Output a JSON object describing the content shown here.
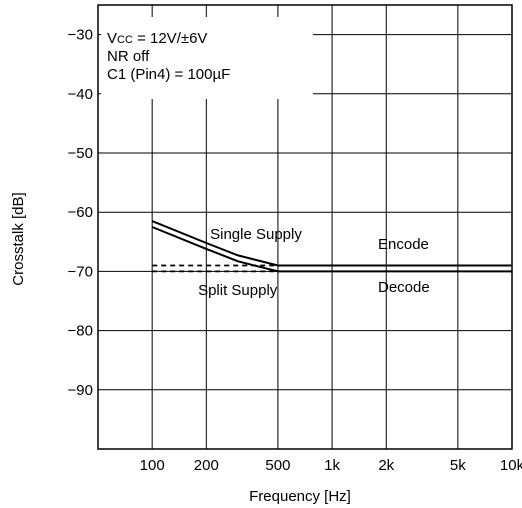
{
  "chart_data": {
    "type": "line",
    "xlabel": "Frequency [Hz]",
    "ylabel": "Crosstalk [dB]",
    "x_scale": "log",
    "xlim": [
      50,
      10000
    ],
    "ylim": [
      -100,
      -25
    ],
    "grid": true,
    "x_ticks": [
      {
        "v": 100,
        "label": "100"
      },
      {
        "v": 200,
        "label": "200"
      },
      {
        "v": 500,
        "label": "500"
      },
      {
        "v": 1000,
        "label": "1k"
      },
      {
        "v": 2000,
        "label": "2k"
      },
      {
        "v": 5000,
        "label": "5k"
      },
      {
        "v": 10000,
        "label": "10k"
      }
    ],
    "y_ticks": [
      {
        "v": -30,
        "label": "−30"
      },
      {
        "v": -40,
        "label": "−40"
      },
      {
        "v": -50,
        "label": "−50"
      },
      {
        "v": -60,
        "label": "−60"
      },
      {
        "v": -70,
        "label": "−70"
      },
      {
        "v": -80,
        "label": "−80"
      },
      {
        "v": -90,
        "label": "−90"
      }
    ],
    "conditions": [
      "V",
      "CC",
      " = 12V/±6V",
      "NR off",
      "C1 (Pin4) = 100µF"
    ],
    "series": [
      {
        "style": "solid",
        "x": [
          100,
          200,
          300,
          500,
          1000,
          2000,
          5000,
          10000
        ],
        "y": [
          -61.5,
          -65.2,
          -67.3,
          -69.0,
          -69.0,
          -69.0,
          -69.0,
          -69.0
        ]
      },
      {
        "style": "solid",
        "x": [
          100,
          200,
          300,
          500,
          1000,
          2000,
          5000,
          10000
        ],
        "y": [
          -62.5,
          -66.2,
          -68.3,
          -70.0,
          -70.0,
          -70.0,
          -70.0,
          -70.0
        ]
      },
      {
        "style": "dashed",
        "x": [
          100,
          500
        ],
        "y": [
          -69.0,
          -69.0
        ]
      },
      {
        "style": "dashed",
        "x": [
          100,
          500
        ],
        "y": [
          -70.0,
          -70.0
        ]
      }
    ],
    "annotations": [
      {
        "text": "Single Supply",
        "x": 210,
        "y": -64.5,
        "anchor": "start"
      },
      {
        "text": "Split Supply",
        "x": 180,
        "y": -74.0,
        "anchor": "start"
      },
      {
        "text": "Encode",
        "x": 1800,
        "y": -66.2,
        "anchor": "start"
      },
      {
        "text": "Decode",
        "x": 1800,
        "y": -73.5,
        "anchor": "start"
      }
    ]
  }
}
